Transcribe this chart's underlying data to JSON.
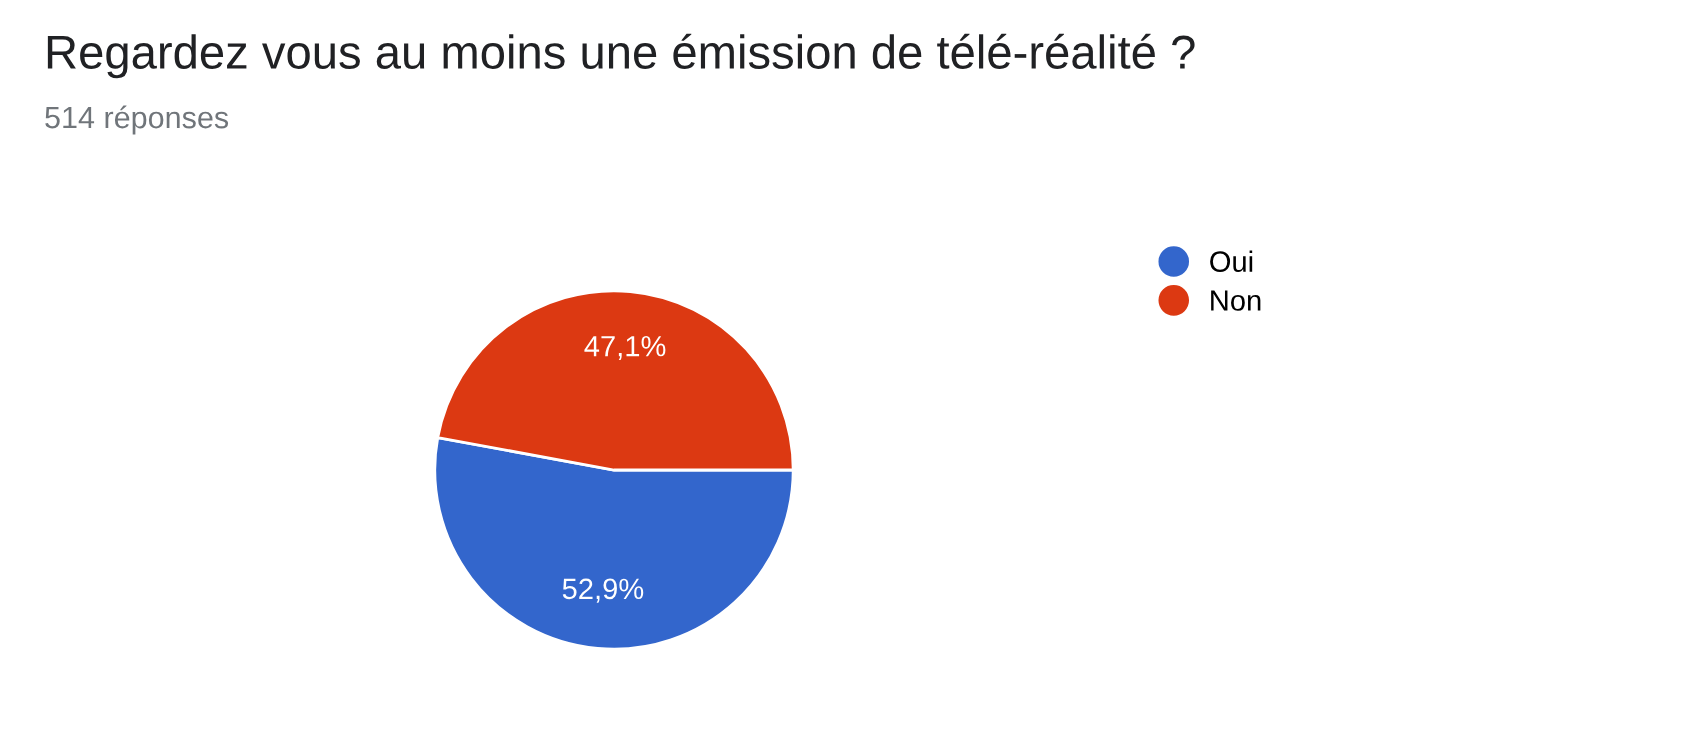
{
  "chart_data": {
    "type": "pie",
    "title": "Regardez vous au moins une émission de télé-réalité ?",
    "subtitle": "514 réponses",
    "categories": [
      "Oui",
      "Non"
    ],
    "values": [
      52.9,
      47.1
    ],
    "colors": [
      "#3366cc",
      "#dc3912"
    ],
    "value_labels": [
      "52,9%",
      "47,1%"
    ],
    "legend": "right"
  }
}
